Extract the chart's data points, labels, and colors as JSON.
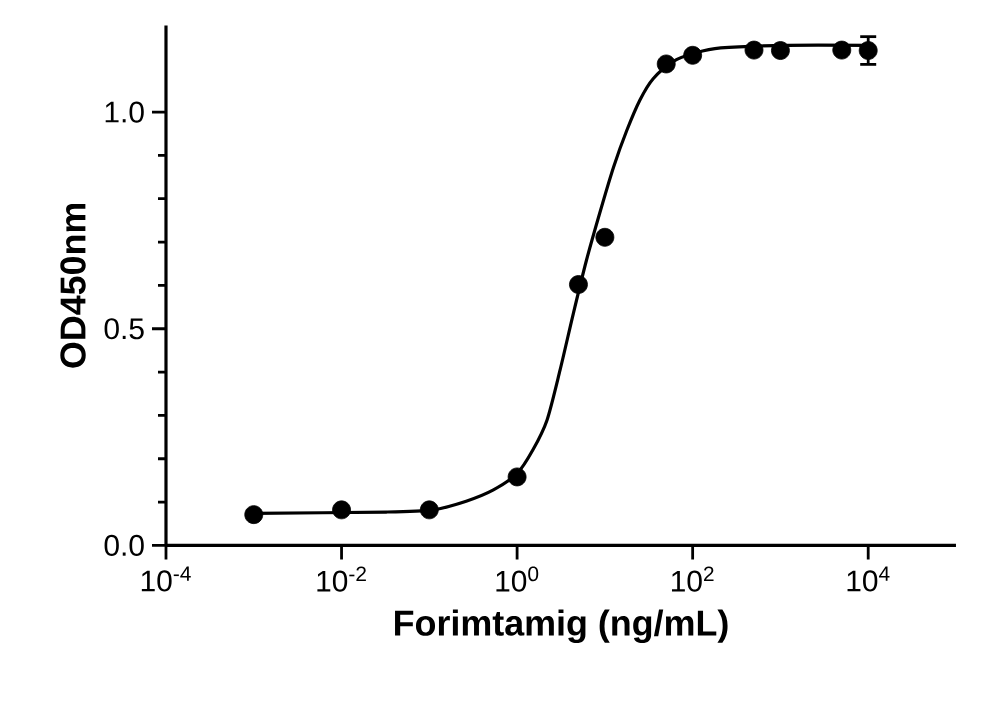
{
  "chart_data": {
    "type": "scatter",
    "xlabel": "Forimtamig (ng/mL)",
    "ylabel": "OD450nm",
    "log": "x",
    "grid": false,
    "xlim": [
      0.0001,
      100000
    ],
    "ylim": [
      0,
      1.2
    ],
    "xticks": [
      {
        "value": 0.0001,
        "label": "10$^{-4}$"
      },
      {
        "value": 0.01,
        "label": "10$^{-2}$"
      },
      {
        "value": 1,
        "label": "10$^{0}$"
      },
      {
        "value": 100,
        "label": "10$^{2}$"
      },
      {
        "value": 10000,
        "label": "10$^{4}$"
      }
    ],
    "yticks": [
      {
        "value": 0,
        "label": "0.0"
      },
      {
        "value": 0.5,
        "label": "0.5"
      },
      {
        "value": 1,
        "label": "1.0"
      }
    ],
    "series": [
      {
        "color": "#000000",
        "marker": "circle",
        "x": [
          0.001,
          0.01,
          0.1,
          1,
          5,
          10,
          50,
          100,
          500,
          1000,
          5000,
          10000
        ],
        "values": [
          0.071,
          0.082,
          0.082,
          0.158,
          0.602,
          0.711,
          1.111,
          1.131,
          1.143,
          1.142,
          1.143,
          1.142
        ],
        "errors": [
          null,
          null,
          null,
          null,
          null,
          null,
          null,
          null,
          null,
          null,
          null,
          0.032
        ]
      },
      {
        "type": "line",
        "color": "#000000",
        "marker": "none",
        "line_style": "solid",
        "x": [
          0.001,
          0.0324,
          0.11,
          0.263,
          0.537,
          1,
          1.51,
          2.19,
          3.09,
          4.37,
          6.17,
          8.71,
          12.6,
          17.8,
          25.1,
          35.5,
          60.3,
          102,
          209,
          1200,
          10200
        ],
        "values": [
          0.074,
          0.077,
          0.082,
          0.102,
          0.128,
          0.166,
          0.22,
          0.289,
          0.405,
          0.535,
          0.658,
          0.766,
          0.874,
          0.958,
          1.028,
          1.077,
          1.117,
          1.135,
          1.148,
          1.154,
          1.154
        ]
      }
    ]
  }
}
